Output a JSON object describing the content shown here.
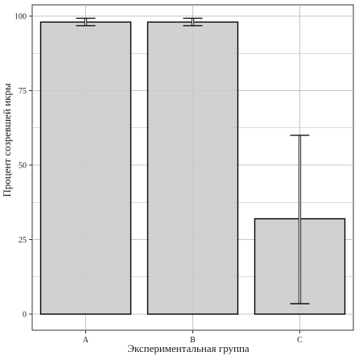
{
  "chart_data": {
    "type": "bar",
    "categories": [
      "A",
      "B",
      "C"
    ],
    "values": [
      98,
      98,
      32
    ],
    "error_low": [
      96.8,
      96.8,
      3.5
    ],
    "error_high": [
      99.3,
      99.3,
      60
    ],
    "xlabel": "Экспериментальная группа",
    "ylabel": "Процент созревшей икры",
    "ylim": [
      0,
      100
    ],
    "yticks": [
      0,
      25,
      50,
      75,
      100
    ],
    "grid": true,
    "colors": {
      "bar_fill": "#cbcbcb",
      "bar_stroke": "#000000",
      "grid": "#b5b5b5",
      "panel_border": "#333333"
    }
  }
}
